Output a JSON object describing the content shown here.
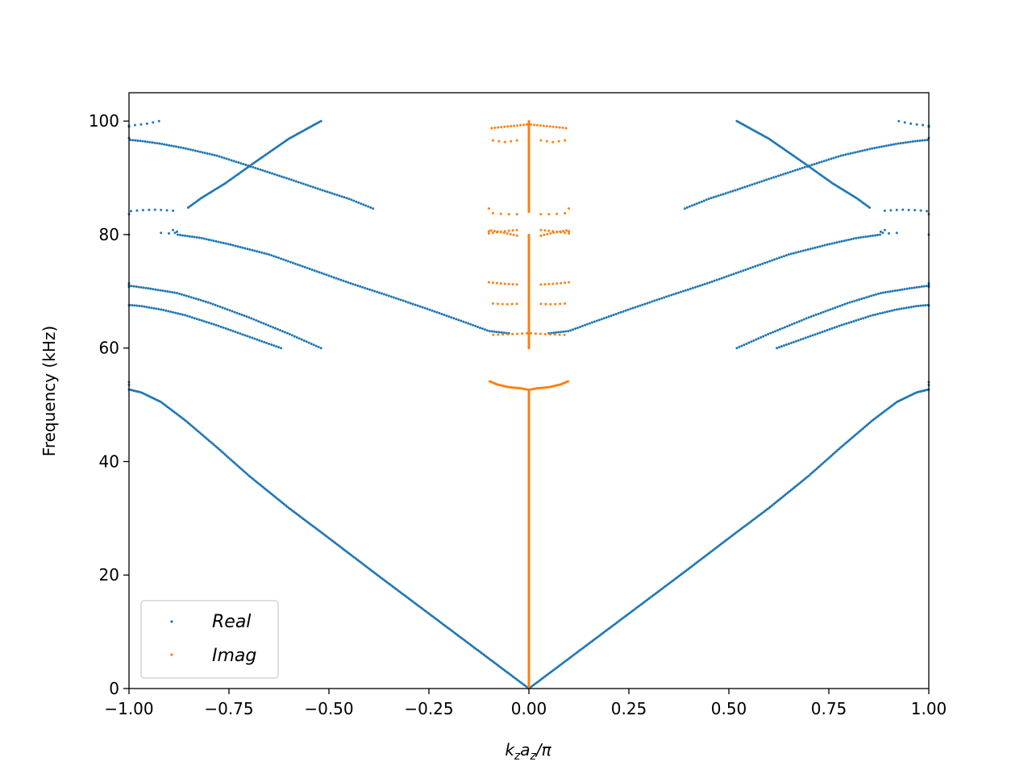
{
  "chart_data": {
    "type": "scatter",
    "title": "",
    "xlabel": "k_z a_z/π",
    "xlabel_parts": {
      "k": "k",
      "k_sub": "z",
      "a": "a",
      "a_sub": "z",
      "tail": "/π"
    },
    "ylabel": "Frequency (kHz)",
    "xlim": [
      -1.0,
      1.0
    ],
    "ylim": [
      0,
      105
    ],
    "xticks": [
      -1.0,
      -0.75,
      -0.5,
      -0.25,
      0.0,
      0.25,
      0.5,
      0.75,
      1.0
    ],
    "xtick_labels": [
      "−1.00",
      "−0.75",
      "−0.50",
      "−0.25",
      "0.00",
      "0.25",
      "0.50",
      "0.75",
      "1.00"
    ],
    "yticks": [
      0,
      20,
      40,
      60,
      80,
      100
    ],
    "ytick_labels": [
      "0",
      "20",
      "40",
      "60",
      "80",
      "100"
    ],
    "grid": false,
    "legend_position": "lower-left",
    "colors": {
      "real": "#1f77b4",
      "imag": "#ff7f0e"
    },
    "series": [
      {
        "name": "Real",
        "color": "#1f77b4",
        "branches": [
          {
            "points": [
              [
                0.0,
                0.0
              ],
              [
                0.125,
                6.6
              ],
              [
                0.25,
                13.2
              ],
              [
                0.375,
                19.8
              ],
              [
                0.5,
                26.5
              ],
              [
                0.6,
                31.8
              ],
              [
                0.7,
                37.5
              ],
              [
                0.78,
                42.5
              ],
              [
                0.86,
                47.3
              ],
              [
                0.92,
                50.5
              ],
              [
                0.97,
                52.2
              ],
              [
                1.0,
                52.7
              ]
            ],
            "mirror": true,
            "step": 0.004
          },
          {
            "points": [
              [
                0.05,
                62.6
              ],
              [
                0.1,
                63.0
              ],
              [
                0.15,
                64.3
              ],
              [
                0.25,
                66.8
              ],
              [
                0.35,
                69.2
              ],
              [
                0.45,
                71.5
              ],
              [
                0.55,
                74.0
              ],
              [
                0.65,
                76.5
              ],
              [
                0.75,
                78.3
              ],
              [
                0.82,
                79.4
              ],
              [
                0.88,
                80.0
              ]
            ],
            "mirror": true,
            "step": 0.006
          },
          {
            "points": [
              [
                0.52,
                60.0
              ],
              [
                0.6,
                62.5
              ],
              [
                0.7,
                65.4
              ],
              [
                0.8,
                68.0
              ],
              [
                0.88,
                69.7
              ],
              [
                0.95,
                70.5
              ],
              [
                1.0,
                71.0
              ]
            ],
            "mirror": true,
            "step": 0.006
          },
          {
            "points": [
              [
                0.62,
                60.0
              ],
              [
                0.7,
                62.0
              ],
              [
                0.78,
                64.0
              ],
              [
                0.86,
                65.8
              ],
              [
                0.92,
                66.8
              ],
              [
                0.97,
                67.4
              ],
              [
                1.0,
                67.6
              ]
            ],
            "mirror": true,
            "step": 0.006
          },
          {
            "points": [
              [
                0.39,
                84.6
              ],
              [
                0.45,
                86.3
              ],
              [
                0.52,
                87.9
              ],
              [
                0.6,
                89.8
              ],
              [
                0.7,
                92.1
              ],
              [
                0.78,
                93.9
              ],
              [
                0.86,
                95.2
              ],
              [
                0.92,
                96.0
              ],
              [
                0.97,
                96.5
              ],
              [
                1.0,
                96.7
              ]
            ],
            "mirror": true,
            "step": 0.006
          },
          {
            "points": [
              [
                0.52,
                100.0
              ],
              [
                0.6,
                96.9
              ],
              [
                0.68,
                93.0
              ],
              [
                0.76,
                89.0
              ],
              [
                0.82,
                86.4
              ],
              [
                0.855,
                84.6
              ]
            ],
            "mirror": true,
            "step": 0.004
          },
          {
            "points": [
              [
                0.89,
                84.2
              ],
              [
                0.93,
                84.4
              ],
              [
                0.97,
                84.3
              ],
              [
                1.0,
                84.1
              ]
            ],
            "mirror": true,
            "step": 0.015
          },
          {
            "points": [
              [
                0.925,
                100.0
              ],
              [
                0.95,
                99.6
              ],
              [
                0.97,
                99.4
              ],
              [
                1.0,
                99.2
              ]
            ],
            "mirror": true,
            "step": 0.015
          },
          {
            "points": [
              [
                0.88,
                80.5
              ],
              [
                0.9,
                80.2
              ],
              [
                0.92,
                80.3
              ]
            ],
            "mirror": true,
            "step": 0.02
          }
        ],
        "extra_points": [
          [
            -1.0,
            53.5
          ],
          [
            -1.0,
            54.0
          ],
          [
            -1.0,
            70.8
          ],
          [
            -1.0,
            71.4
          ],
          [
            -1.0,
            67.5
          ],
          [
            -1.0,
            80.0
          ],
          [
            -1.0,
            83.6
          ],
          [
            -1.0,
            97.0
          ],
          [
            -1.0,
            99.0
          ],
          [
            1.0,
            53.5
          ],
          [
            1.0,
            54.0
          ],
          [
            1.0,
            70.8
          ],
          [
            1.0,
            71.4
          ],
          [
            1.0,
            67.5
          ],
          [
            1.0,
            80.0
          ],
          [
            1.0,
            83.6
          ],
          [
            1.0,
            97.0
          ],
          [
            1.0,
            99.0
          ],
          [
            -0.89,
            80.8
          ],
          [
            0.89,
            80.8
          ],
          [
            -0.885,
            80.3
          ],
          [
            0.885,
            80.3
          ]
        ]
      },
      {
        "name": "Imag",
        "color": "#ff7f0e",
        "vertical_segments": [
          {
            "x": 0.0,
            "y": [
              0.0,
              52.7
            ],
            "step": 0.12
          },
          {
            "x": 0.0,
            "y": [
              60.0,
              80.0
            ],
            "step": 0.12
          },
          {
            "x": 0.0,
            "y": [
              84.0,
              100.0
            ],
            "step": 0.12
          }
        ],
        "branches": [
          {
            "points": [
              [
                0.005,
                52.7
              ],
              [
                0.02,
                52.9
              ],
              [
                0.05,
                53.1
              ],
              [
                0.08,
                53.6
              ],
              [
                0.1,
                54.2
              ]
            ],
            "mirror": true,
            "step": 0.003
          },
          {
            "points": [
              [
                0.005,
                62.6
              ],
              [
                0.03,
                62.5
              ],
              [
                0.06,
                62.4
              ],
              [
                0.1,
                62.3
              ]
            ],
            "mirror": true,
            "step": 0.012
          },
          {
            "points": [
              [
                0.03,
                67.8
              ],
              [
                0.06,
                67.7
              ],
              [
                0.1,
                67.9
              ]
            ],
            "mirror": true,
            "step": 0.012
          },
          {
            "points": [
              [
                0.03,
                71.2
              ],
              [
                0.06,
                71.3
              ],
              [
                0.1,
                71.6
              ]
            ],
            "mirror": true,
            "step": 0.01
          },
          {
            "points": [
              [
                0.03,
                79.8
              ],
              [
                0.06,
                80.3
              ],
              [
                0.1,
                80.8
              ]
            ],
            "mirror": true,
            "step": 0.008
          },
          {
            "points": [
              [
                0.03,
                80.8
              ],
              [
                0.06,
                80.6
              ],
              [
                0.1,
                80.2
              ]
            ],
            "mirror": true,
            "step": 0.01
          },
          {
            "points": [
              [
                0.03,
                83.6
              ],
              [
                0.06,
                83.6
              ],
              [
                0.1,
                83.8
              ]
            ],
            "mirror": true,
            "step": 0.02
          },
          {
            "points": [
              [
                0.03,
                96.6
              ],
              [
                0.06,
                96.3
              ],
              [
                0.1,
                96.7
              ]
            ],
            "mirror": true,
            "step": 0.015
          },
          {
            "points": [
              [
                0.005,
                99.4
              ],
              [
                0.03,
                99.2
              ],
              [
                0.06,
                99.0
              ],
              [
                0.1,
                98.7
              ]
            ],
            "mirror": true,
            "step": 0.008
          }
        ],
        "extra_points": [
          [
            -0.1,
            84.6
          ],
          [
            0.1,
            84.6
          ],
          [
            -0.1,
            80.6
          ],
          [
            0.1,
            80.6
          ]
        ]
      }
    ]
  }
}
